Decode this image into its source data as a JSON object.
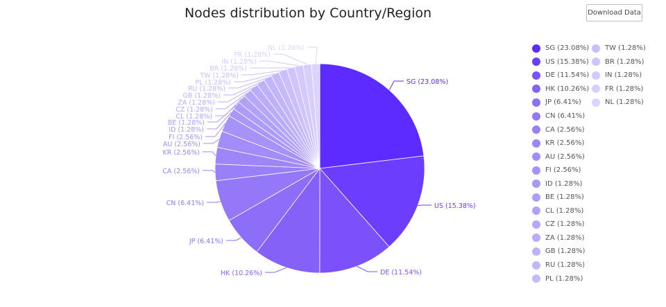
{
  "header": {
    "title": "Nodes distribution by Country/Region"
  },
  "toolbar": {
    "download_label": "Download Data"
  },
  "chart_data": {
    "type": "pie",
    "title": "Nodes distribution by Country/Region",
    "slices": [
      {
        "label": "SG (23.08%)",
        "value": 23.08,
        "color": "#5b2bff"
      },
      {
        "label": "US (15.38%)",
        "value": 15.38,
        "color": "#6d3dfc"
      },
      {
        "label": "DE (11.54%)",
        "value": 11.54,
        "color": "#7b52f9"
      },
      {
        "label": "HK (10.26%)",
        "value": 10.26,
        "color": "#8561f8"
      },
      {
        "label": "JP (6.41%)",
        "value": 6.41,
        "color": "#8d6ef8"
      },
      {
        "label": "CN (6.41%)",
        "value": 6.41,
        "color": "#9478f8"
      },
      {
        "label": "CA (2.56%)",
        "value": 2.56,
        "color": "#9a80f8"
      },
      {
        "label": "KR (2.56%)",
        "value": 2.56,
        "color": "#9f86f8"
      },
      {
        "label": "AU (2.56%)",
        "value": 2.56,
        "color": "#a38cf8"
      },
      {
        "label": "FI (2.56%)",
        "value": 2.56,
        "color": "#a792f9"
      },
      {
        "label": "ID (1.28%)",
        "value": 1.28,
        "color": "#ab97f9"
      },
      {
        "label": "BE (1.28%)",
        "value": 1.28,
        "color": "#af9cf9"
      },
      {
        "label": "CL (1.28%)",
        "value": 1.28,
        "color": "#b3a1f9"
      },
      {
        "label": "CZ (1.28%)",
        "value": 1.28,
        "color": "#b7a6fa"
      },
      {
        "label": "ZA (1.28%)",
        "value": 1.28,
        "color": "#bbabfa"
      },
      {
        "label": "GB (1.28%)",
        "value": 1.28,
        "color": "#bfb0fa"
      },
      {
        "label": "RU (1.28%)",
        "value": 1.28,
        "color": "#c3b5fb"
      },
      {
        "label": "PL (1.28%)",
        "value": 1.28,
        "color": "#c7bafb"
      },
      {
        "label": "TW (1.28%)",
        "value": 1.28,
        "color": "#cbbffb"
      },
      {
        "label": "BR (1.28%)",
        "value": 1.28,
        "color": "#cfc4fc"
      },
      {
        "label": "IN (1.28%)",
        "value": 1.28,
        "color": "#d3c9fc"
      },
      {
        "label": "FR (1.28%)",
        "value": 1.28,
        "color": "#d7cefc"
      },
      {
        "label": "NL (1.28%)",
        "value": 1.28,
        "color": "#dcd4fd"
      }
    ],
    "legend_placement": "right"
  }
}
